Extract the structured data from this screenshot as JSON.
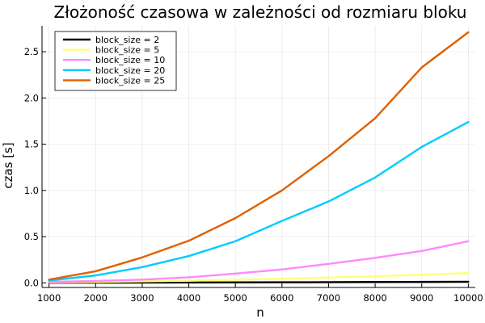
{
  "chart_data": {
    "type": "line",
    "title": "Złożoność czasowa w zależności od rozmiaru bloku",
    "xlabel": "n",
    "ylabel": "czas [s]",
    "xlim": [
      850,
      10150
    ],
    "ylim": [
      -0.05,
      2.78
    ],
    "x_ticks": [
      1000,
      2000,
      3000,
      4000,
      5000,
      6000,
      7000,
      8000,
      9000,
      10000
    ],
    "y_ticks": [
      0.0,
      0.5,
      1.0,
      1.5,
      2.0,
      2.5
    ],
    "y_tick_labels": [
      "0.0",
      "0.5",
      "1.0",
      "1.5",
      "2.0",
      "2.5"
    ],
    "grid": true,
    "legend_position": "top-left",
    "x": [
      1000,
      2000,
      3000,
      4000,
      5000,
      6000,
      7000,
      8000,
      9000,
      10000
    ],
    "series": [
      {
        "name": "block_size = 2",
        "color": "#000000",
        "values": [
          0.001,
          0.002,
          0.003,
          0.004,
          0.005,
          0.006,
          0.007,
          0.009,
          0.01,
          0.012
        ]
      },
      {
        "name": "block_size = 5",
        "color": "#ffff77",
        "values": [
          0.005,
          0.01,
          0.016,
          0.023,
          0.033,
          0.044,
          0.058,
          0.072,
          0.088,
          0.105
        ]
      },
      {
        "name": "block_size = 10",
        "color": "#ff88ff",
        "values": [
          0.01,
          0.02,
          0.035,
          0.06,
          0.1,
          0.145,
          0.205,
          0.27,
          0.345,
          0.45
        ]
      },
      {
        "name": "block_size = 20",
        "color": "#00ccff",
        "values": [
          0.025,
          0.08,
          0.17,
          0.29,
          0.45,
          0.67,
          0.88,
          1.14,
          1.47,
          1.74
        ]
      },
      {
        "name": "block_size = 25",
        "color": "#e06000",
        "values": [
          0.035,
          0.125,
          0.275,
          0.455,
          0.7,
          1.0,
          1.37,
          1.78,
          2.33,
          2.71
        ]
      }
    ]
  }
}
